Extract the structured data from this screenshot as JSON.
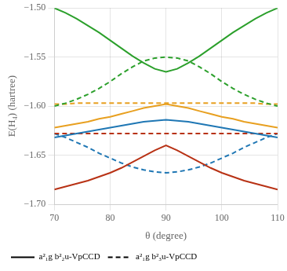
{
  "chart_data": {
    "type": "line",
    "xlabel": "θ (degree)",
    "ylabel": "E(H₄) (hartree)",
    "x": [
      70,
      72,
      74,
      76,
      78,
      80,
      82,
      84,
      86,
      88,
      90,
      92,
      94,
      96,
      98,
      100,
      102,
      104,
      106,
      108,
      110
    ],
    "xlim": [
      70,
      110
    ],
    "ylim": [
      -1.7,
      -1.5
    ],
    "xticks": [
      70,
      80,
      90,
      100,
      110
    ],
    "yticks": [
      {
        "value": -1.7,
        "label": "−1.70"
      },
      {
        "value": -1.65,
        "label": "−1.65"
      },
      {
        "value": -1.6,
        "label": "−1.60"
      },
      {
        "value": -1.55,
        "label": "−1.55"
      },
      {
        "value": -1.5,
        "label": "−1.50"
      }
    ],
    "grid": true,
    "legend": "lower left",
    "series": [
      {
        "name": "a²₁g b²₂u-VpCCD",
        "color": "#2ca02c",
        "line_style": "solid",
        "values": [
          -1.5,
          -1.505,
          -1.511,
          -1.518,
          -1.525,
          -1.533,
          -1.541,
          -1.549,
          -1.556,
          -1.562,
          -1.565,
          -1.562,
          -1.556,
          -1.549,
          -1.541,
          -1.533,
          -1.525,
          -1.518,
          -1.511,
          -1.505,
          -1.5
        ]
      },
      {
        "name": "a²₁g b²₂u-VpCCD",
        "color": "#e8a020",
        "line_style": "solid",
        "values": [
          -1.622,
          -1.62,
          -1.618,
          -1.616,
          -1.613,
          -1.611,
          -1.608,
          -1.605,
          -1.602,
          -1.6,
          -1.598,
          -1.6,
          -1.602,
          -1.605,
          -1.608,
          -1.611,
          -1.613,
          -1.616,
          -1.618,
          -1.62,
          -1.622
        ]
      },
      {
        "name": "a²₁g b²₂u-VpCCD",
        "color": "#1f77b4",
        "line_style": "solid",
        "values": [
          -1.632,
          -1.63,
          -1.628,
          -1.626,
          -1.624,
          -1.622,
          -1.62,
          -1.618,
          -1.616,
          -1.615,
          -1.614,
          -1.615,
          -1.616,
          -1.618,
          -1.62,
          -1.622,
          -1.624,
          -1.626,
          -1.628,
          -1.63,
          -1.632
        ]
      },
      {
        "name": "a²₁g b²₂u-VpCCD",
        "color": "#b83215",
        "line_style": "solid",
        "values": [
          -1.685,
          -1.682,
          -1.679,
          -1.676,
          -1.672,
          -1.668,
          -1.663,
          -1.657,
          -1.651,
          -1.645,
          -1.64,
          -1.645,
          -1.651,
          -1.657,
          -1.663,
          -1.668,
          -1.672,
          -1.676,
          -1.679,
          -1.682,
          -1.685
        ]
      },
      {
        "name": "a²₁g b²₃u-VpCCD",
        "color": "#2ca02c",
        "line_style": "dashed",
        "values": [
          -1.6,
          -1.597,
          -1.593,
          -1.588,
          -1.582,
          -1.575,
          -1.567,
          -1.56,
          -1.554,
          -1.551,
          -1.55,
          -1.551,
          -1.554,
          -1.56,
          -1.567,
          -1.575,
          -1.582,
          -1.588,
          -1.593,
          -1.597,
          -1.6
        ]
      },
      {
        "name": "a²₁g b²₃u-VpCCD",
        "color": "#e8a020",
        "line_style": "dashed",
        "values": [
          -1.598,
          -1.598,
          -1.597,
          -1.597,
          -1.597,
          -1.597,
          -1.597,
          -1.597,
          -1.597,
          -1.597,
          -1.597,
          -1.597,
          -1.597,
          -1.597,
          -1.597,
          -1.597,
          -1.597,
          -1.597,
          -1.597,
          -1.598,
          -1.598
        ]
      },
      {
        "name": "a²₁g b²₃u-VpCCD",
        "color": "#b83215",
        "line_style": "dashed",
        "values": [
          -1.628,
          -1.628,
          -1.628,
          -1.628,
          -1.628,
          -1.628,
          -1.628,
          -1.628,
          -1.628,
          -1.628,
          -1.628,
          -1.628,
          -1.628,
          -1.628,
          -1.628,
          -1.628,
          -1.628,
          -1.628,
          -1.628,
          -1.628,
          -1.628
        ]
      },
      {
        "name": "a²₁g b²₃u-VpCCD",
        "color": "#1f77b4",
        "line_style": "dashed",
        "values": [
          -1.628,
          -1.632,
          -1.637,
          -1.642,
          -1.648,
          -1.653,
          -1.658,
          -1.662,
          -1.665,
          -1.667,
          -1.668,
          -1.667,
          -1.665,
          -1.662,
          -1.658,
          -1.653,
          -1.648,
          -1.642,
          -1.637,
          -1.632,
          -1.628
        ]
      }
    ]
  }
}
